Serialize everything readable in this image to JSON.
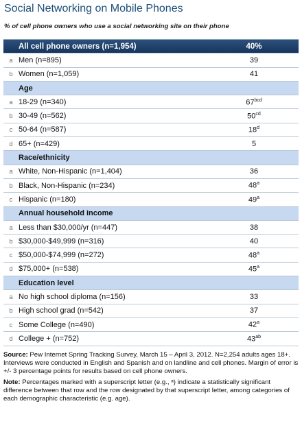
{
  "header": {
    "title": "Social Networking on Mobile Phones",
    "subtitle": "% of cell phone owners who use a social networking site on their phone"
  },
  "table": {
    "total": {
      "label": "All cell phone owners (n=1,954)",
      "value": "40%"
    },
    "rows": [
      {
        "letter": "a",
        "label": "Men (n=895)",
        "value": 39
      },
      {
        "letter": "b",
        "label": "Women (n=1,059)",
        "value": 41
      }
    ],
    "sections": [
      {
        "title": "Age",
        "rows": [
          {
            "letter": "a",
            "label": "18-29 (n=340)",
            "value": 67,
            "sup": "bcd"
          },
          {
            "letter": "b",
            "label": "30-49 (n=562)",
            "value": 50,
            "sup": "cd"
          },
          {
            "letter": "c",
            "label": "50-64 (n=587)",
            "value": 18,
            "sup": "d"
          },
          {
            "letter": "d",
            "label": "65+ (n=429)",
            "value": 5
          }
        ]
      },
      {
        "title": "Race/ethnicity",
        "rows": [
          {
            "letter": "a",
            "label": "White, Non-Hispanic (n=1,404)",
            "value": 36
          },
          {
            "letter": "b",
            "label": "Black, Non-Hispanic (n=234)",
            "value": 48,
            "sup": "a"
          },
          {
            "letter": "c",
            "label": "Hispanic (n=180)",
            "value": 49,
            "sup": "a"
          }
        ]
      },
      {
        "title": "Annual household income",
        "rows": [
          {
            "letter": "a",
            "label": "Less than $30,000/yr (n=447)",
            "value": 38
          },
          {
            "letter": "b",
            "label": "$30,000-$49,999 (n=316)",
            "value": 40
          },
          {
            "letter": "c",
            "label": "$50,000-$74,999 (n=272)",
            "value": 48,
            "sup": "a"
          },
          {
            "letter": "d",
            "label": "$75,000+ (n=538)",
            "value": 45,
            "sup": "a"
          }
        ]
      },
      {
        "title": "Education level",
        "rows": [
          {
            "letter": "a",
            "label": "No high school diploma (n=156)",
            "value": 33
          },
          {
            "letter": "b",
            "label": "High school grad (n=542)",
            "value": 37
          },
          {
            "letter": "c",
            "label": "Some College (n=490)",
            "value": 42,
            "sup": "a"
          },
          {
            "letter": "d",
            "label": "College + (n=752)",
            "value": 43,
            "sup": "ab"
          }
        ]
      }
    ]
  },
  "notes": {
    "source_label": "Source:",
    "source": "Pew Internet Spring Tracking Survey, March 15 – April 3, 2012. N=2,254 adults ages 18+. Interviews were conducted in English and Spanish and on landline and cell phones.  Margin of error is +/- 3 percentage points for results based on cell phone owners.",
    "note_label": "Note:",
    "note": "Percentages marked with a superscript letter (e.g., ᵃ) indicate a statistically significant difference between that row and the row designated by that superscript letter, among categories of each demographic characteristic (e.g. age)."
  }
}
